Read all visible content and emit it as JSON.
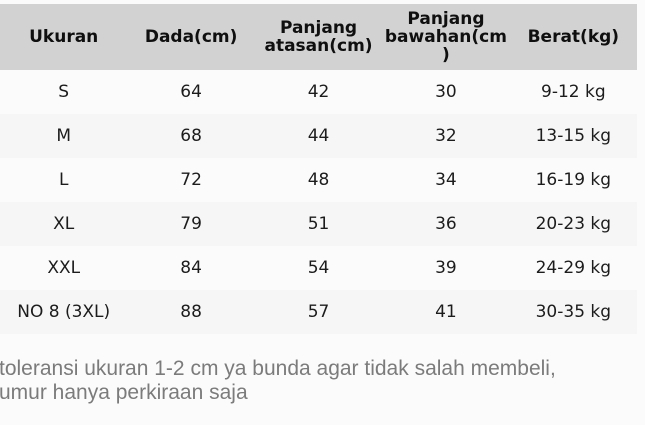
{
  "table": {
    "columns": [
      {
        "label": "Ukuran"
      },
      {
        "label": "Dada(cm)"
      },
      {
        "label": "Panjang\natasan(cm)"
      },
      {
        "label": "Panjang\nbawahan(cm\n)"
      },
      {
        "label": "Berat(kg)"
      }
    ],
    "rows": [
      [
        "S",
        "64",
        "42",
        "30",
        "9-12 kg"
      ],
      [
        "M",
        "68",
        "44",
        "32",
        "13-15 kg"
      ],
      [
        "L",
        "72",
        "48",
        "34",
        "16-19 kg"
      ],
      [
        "XL",
        "79",
        "51",
        "36",
        "20-23 kg"
      ],
      [
        "XXL",
        "84",
        "54",
        "39",
        "24-29 kg"
      ],
      [
        "NO 8 (3XL)",
        "88",
        "57",
        "41",
        "30-35 kg"
      ]
    ]
  },
  "note": {
    "text": "toleransi ukuran 1-2 cm ya bunda agar tidak salah membeli,\numur hanya perkiraan saja"
  },
  "colors": {
    "header_bg": "#d2d2d2",
    "row_alt_bg": "#f5f6f5",
    "row_bg": "#fbfbfb",
    "header_text": "#0f0f0f",
    "body_text": "#1c1c1c",
    "note_text": "#7b7b7b"
  },
  "chart_data": {
    "type": "table",
    "title": "",
    "columns": [
      "Ukuran",
      "Dada(cm)",
      "Panjang atasan(cm)",
      "Panjang bawahan(cm)",
      "Berat(kg)"
    ],
    "rows": [
      [
        "S",
        64,
        42,
        30,
        "9-12 kg"
      ],
      [
        "M",
        68,
        44,
        32,
        "13-15 kg"
      ],
      [
        "L",
        72,
        48,
        34,
        "16-19 kg"
      ],
      [
        "XL",
        79,
        51,
        36,
        "20-23 kg"
      ],
      [
        "XXL",
        84,
        54,
        39,
        "24-29 kg"
      ],
      [
        "NO 8 (3XL)",
        88,
        57,
        41,
        "30-35 kg"
      ]
    ],
    "annotations": [
      "toleransi ukuran 1-2 cm ya bunda agar tidak salah membeli, umur hanya perkiraan saja"
    ],
    "layout_hints": {
      "header_shaded": true,
      "zebra_striping": true,
      "cell_alignment": "center"
    }
  }
}
